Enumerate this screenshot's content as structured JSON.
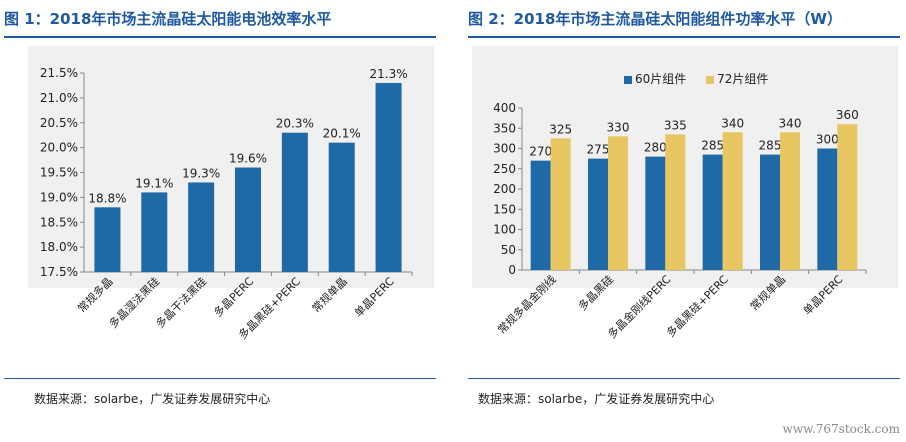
{
  "figure_left": {
    "title": "图 1：2018年市场主流晶硅太阳能电池效率水平",
    "source": "数据来源：solarbe，广发证券发展研究中心"
  },
  "figure_right": {
    "title": "图 2：2018年市场主流晶硅太阳能组件功率水平（W）",
    "source": "数据来源：solarbe，广发证券发展研究中心"
  },
  "watermark": "www.767stock.com",
  "colors": {
    "title": "#1f5aa0",
    "bar_blue": "#1f6aa6",
    "bar_gold": "#e8c662",
    "plot_bg": "#f0f0f0"
  },
  "chart_data": [
    {
      "type": "bar",
      "title": "2018年市场主流晶硅太阳能电池效率水平",
      "categories": [
        "常规多晶",
        "多晶湿法黑硅",
        "多晶干法黑硅",
        "多晶PERC",
        "多晶黑硅+PERC",
        "常规单晶",
        "单晶PERC"
      ],
      "values": [
        18.8,
        19.1,
        19.3,
        19.6,
        20.3,
        20.1,
        21.3
      ],
      "labels": [
        "18.8%",
        "19.1%",
        "19.3%",
        "19.6%",
        "20.3%",
        "20.1%",
        "21.3%"
      ],
      "yticks": [
        "17.5%",
        "18.0%",
        "18.5%",
        "19.0%",
        "19.5%",
        "20.0%",
        "20.5%",
        "21.0%",
        "21.5%"
      ],
      "ylim": [
        17.5,
        21.5
      ],
      "grid": false
    },
    {
      "type": "bar",
      "title": "2018年市场主流晶硅太阳能组件功率水平（W）",
      "categories": [
        "常规多晶金刚线",
        "多晶黑硅",
        "多晶金刚线PERC",
        "多晶黑硅+PERC",
        "常规单晶",
        "单晶PERC"
      ],
      "series": [
        {
          "name": "60片组件",
          "values": [
            270,
            275,
            280,
            285,
            285,
            300
          ]
        },
        {
          "name": "72片组件",
          "values": [
            325,
            330,
            335,
            340,
            340,
            360
          ]
        }
      ],
      "yticks": [
        "0",
        "50",
        "100",
        "150",
        "200",
        "250",
        "300",
        "350",
        "400"
      ],
      "ylim": [
        0,
        400
      ],
      "legend": "top",
      "grid": false
    }
  ]
}
